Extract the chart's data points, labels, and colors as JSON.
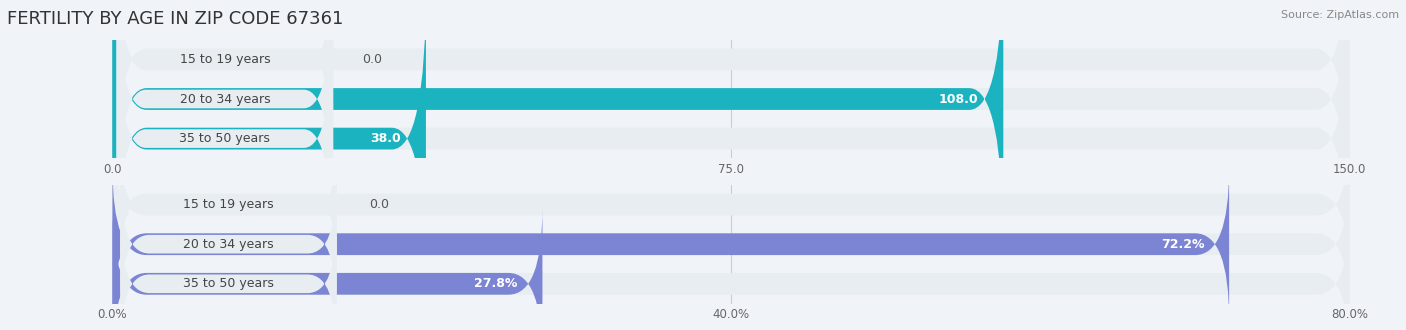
{
  "title": "FERTILITY BY AGE IN ZIP CODE 67361",
  "source_text": "Source: ZipAtlas.com",
  "top_chart": {
    "categories": [
      "15 to 19 years",
      "20 to 34 years",
      "35 to 50 years"
    ],
    "values": [
      0.0,
      108.0,
      38.0
    ],
    "xlim": [
      0,
      150
    ],
    "xticks": [
      0.0,
      75.0,
      150.0
    ],
    "bar_color_light": "#7fd8e0",
    "bar_color_dark": "#1ab3bf",
    "label_inside_color": "#ffffff",
    "label_outside_color": "#555555"
  },
  "bottom_chart": {
    "categories": [
      "15 to 19 years",
      "20 to 34 years",
      "35 to 50 years"
    ],
    "values": [
      0.0,
      72.2,
      27.8
    ],
    "xlim": [
      0,
      80
    ],
    "xticks": [
      0.0,
      40.0,
      80.0
    ],
    "bar_color_light": "#b0b8e8",
    "bar_color_dark": "#7b85d4",
    "label_inside_color": "#ffffff",
    "label_outside_color": "#555555"
  },
  "bg_color": "#f0f4f8",
  "bar_bg_color": "#e8edf2",
  "title_fontsize": 13,
  "label_fontsize": 9,
  "tick_fontsize": 8.5,
  "source_fontsize": 8
}
